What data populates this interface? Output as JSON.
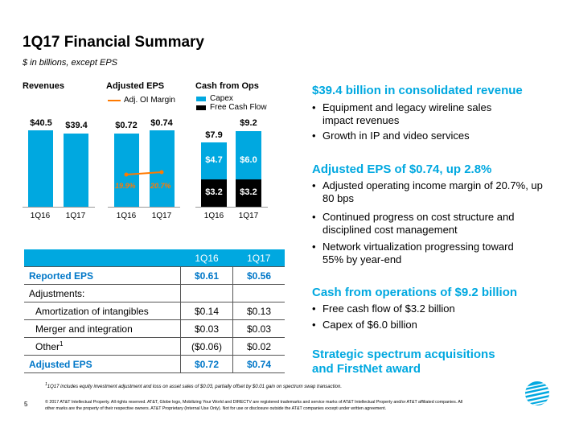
{
  "title": "1Q17 Financial Summary",
  "subtitle": "$ in billions, except EPS",
  "colors": {
    "accent": "#00a8e0",
    "orange": "#ff7a00",
    "dark_blue": "#0077c8"
  },
  "charts": {
    "revenues": {
      "title": "Revenues",
      "bars": [
        {
          "label": "$40.5",
          "x": "1Q16"
        },
        {
          "label": "$39.4",
          "x": "1Q17"
        }
      ]
    },
    "eps": {
      "title": "Adjusted EPS",
      "legend": "Adj. OI Margin",
      "bars": [
        {
          "label": "$0.72",
          "x": "1Q16",
          "margin": "19.9%"
        },
        {
          "label": "$0.74",
          "x": "1Q17",
          "margin": "20.7%"
        }
      ]
    },
    "cash": {
      "title": "Cash from Ops",
      "legend_capex": "Capex",
      "legend_fcf": "Free Cash Flow",
      "bars": [
        {
          "total": "$7.9",
          "capex": "$4.7",
          "fcf": "$3.2",
          "x": "1Q16"
        },
        {
          "total": "$9.2",
          "capex": "$6.0",
          "fcf": "$3.2",
          "x": "1Q17"
        }
      ]
    }
  },
  "chart_data": [
    {
      "type": "bar",
      "title": "Revenues",
      "categories": [
        "1Q16",
        "1Q17"
      ],
      "values": [
        40.5,
        39.4
      ]
    },
    {
      "type": "bar",
      "title": "Adjusted EPS",
      "categories": [
        "1Q16",
        "1Q17"
      ],
      "series": [
        {
          "name": "Adjusted EPS",
          "values": [
            0.72,
            0.74
          ]
        },
        {
          "name": "Adj. OI Margin",
          "values": [
            19.9,
            20.7
          ]
        }
      ]
    },
    {
      "type": "bar",
      "title": "Cash from Ops",
      "categories": [
        "1Q16",
        "1Q17"
      ],
      "series": [
        {
          "name": "Free Cash Flow",
          "values": [
            3.2,
            3.2
          ]
        },
        {
          "name": "Capex",
          "values": [
            4.7,
            6.0
          ]
        }
      ],
      "totals": [
        7.9,
        9.2
      ]
    }
  ],
  "table": {
    "headers": [
      "",
      "1Q16",
      "1Q17"
    ],
    "rows": [
      {
        "label": "Reported EPS",
        "v1": "$0.61",
        "v2": "$0.56"
      },
      {
        "label": "Adjustments:",
        "v1": "",
        "v2": ""
      },
      {
        "label": "Amortization of intangibles",
        "v1": "$0.14",
        "v2": "$0.13"
      },
      {
        "label": "Merger and integration",
        "v1": "$0.03",
        "v2": "$0.03"
      },
      {
        "label": "Other",
        "sup": "1",
        "v1": "($0.06)",
        "v2": "$0.02"
      },
      {
        "label": "Adjusted EPS",
        "v1": "$0.72",
        "v2": "$0.74"
      }
    ]
  },
  "right": {
    "h1": "$39.4 billion in consolidated revenue",
    "b1": "Equipment and legacy wireline sales impact revenues",
    "b2": "Growth in IP and video services",
    "h2": "Adjusted EPS of $0.74, up 2.8%",
    "b3": "Adjusted operating income margin of 20.7%, up 80 bps",
    "b4": "Continued progress on cost structure and disciplined cost management",
    "b5": "Network virtualization progressing toward 55% by year-end",
    "h3": "Cash from operations of $9.2 billion",
    "b6": "Free cash flow of $3.2 billion",
    "b7": "Capex of $6.0 billion",
    "h4a": "Strategic spectrum acquisitions",
    "h4b": "and FirstNet award"
  },
  "footnote": "1Q17 includes equity investment adjustment and loss on asset sales of $0.03, partially offset by $0.01 gain on spectrum swap transaction.",
  "footnote_sup": "1",
  "page_number": "5",
  "legal": "© 2017 AT&T Intellectual Property. All rights reserved. AT&T, Globe logo, Mobilizing Your World and DIRECTV are registered trademarks and service marks of AT&T Intellectual Property and/or AT&T affiliated companies. All other marks are the property of their respective owners. AT&T Proprietary (Internal Use Only). Not for use or disclosure outside the AT&T companies except under written agreement.",
  "bullet_char": "•"
}
